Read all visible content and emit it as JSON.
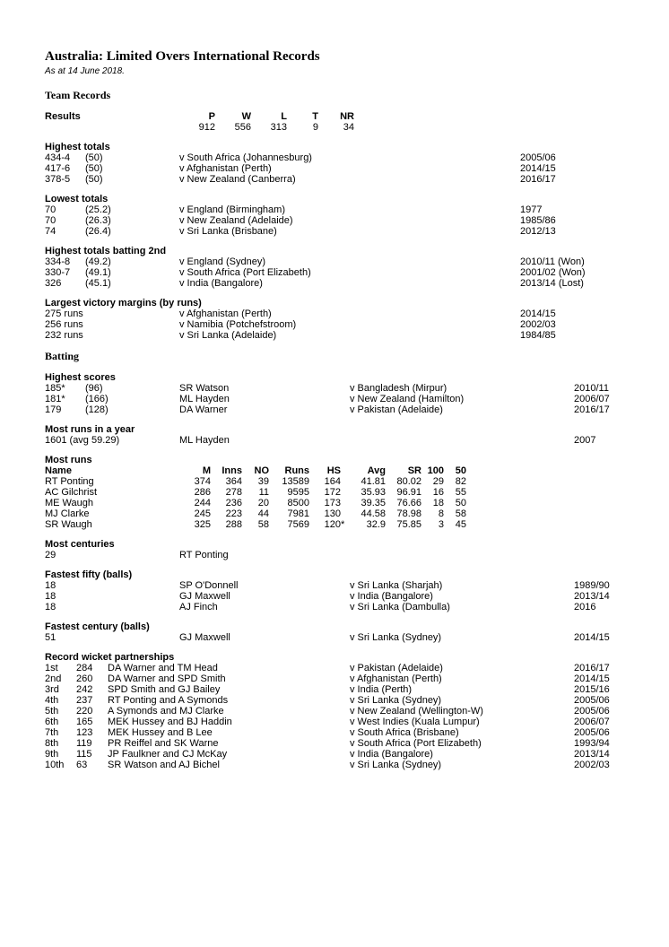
{
  "title": "Australia: Limited Overs International Records",
  "asat": "As at 14 June 2018.",
  "team_records_heading": "Team Records",
  "batting_heading": "Batting",
  "results": {
    "label": "Results",
    "headers": [
      "P",
      "W",
      "L",
      "T",
      "NR"
    ],
    "values": [
      "912",
      "556",
      "313",
      "9",
      "34"
    ]
  },
  "highest_totals": {
    "label": "Highest totals",
    "rows": [
      {
        "score": "434-4",
        "overs": "(50)",
        "opp": "v South Africa (Johannesburg)",
        "season": "2005/06"
      },
      {
        "score": "417-6",
        "overs": "(50)",
        "opp": "v Afghanistan (Perth)",
        "season": "2014/15"
      },
      {
        "score": "378-5",
        "overs": "(50)",
        "opp": "v New Zealand (Canberra)",
        "season": "2016/17"
      }
    ]
  },
  "lowest_totals": {
    "label": "Lowest totals",
    "rows": [
      {
        "score": "70",
        "overs": "(25.2)",
        "opp": "v England (Birmingham)",
        "season": "1977"
      },
      {
        "score": "70",
        "overs": "(26.3)",
        "opp": "v New Zealand (Adelaide)",
        "season": "1985/86"
      },
      {
        "score": "74",
        "overs": "(26.4)",
        "opp": "v Sri Lanka (Brisbane)",
        "season": "2012/13"
      }
    ]
  },
  "highest_2nd": {
    "label": "Highest totals batting 2nd",
    "rows": [
      {
        "score": "334-8",
        "overs": "(49.2)",
        "opp": "v England (Sydney)",
        "season": "2010/11 (Won)"
      },
      {
        "score": "330-7",
        "overs": "(49.1)",
        "opp": "v South Africa (Port Elizabeth)",
        "season": "2001/02 (Won)"
      },
      {
        "score": "326",
        "overs": "(45.1)",
        "opp": "v India (Bangalore)",
        "season": "2013/14 (Lost)"
      }
    ]
  },
  "largest_margins": {
    "label": "Largest victory margins (by runs)",
    "rows": [
      {
        "margin": "275 runs",
        "opp": "v Afghanistan (Perth)",
        "season": "2014/15"
      },
      {
        "margin": "256 runs",
        "opp": "v Namibia (Potchefstroom)",
        "season": "2002/03"
      },
      {
        "margin": "232 runs",
        "opp": "v Sri Lanka (Adelaide)",
        "season": "1984/85"
      }
    ]
  },
  "highest_scores": {
    "label": "Highest scores",
    "rows": [
      {
        "score": "185*",
        "balls": "(96)",
        "player": "SR Watson",
        "opp": "v Bangladesh (Mirpur)",
        "season": "2010/11"
      },
      {
        "score": "181*",
        "balls": "(166)",
        "player": "ML Hayden",
        "opp": "v New Zealand (Hamilton)",
        "season": "2006/07"
      },
      {
        "score": "179",
        "balls": "(128)",
        "player": "DA Warner",
        "opp": "v Pakistan (Adelaide)",
        "season": "2016/17"
      }
    ]
  },
  "most_runs_year": {
    "label": "Most runs in a year",
    "value": "1601 (avg 59.29)",
    "player": "ML Hayden",
    "season": "2007"
  },
  "most_runs": {
    "label": "Most runs",
    "headers": [
      "Name",
      "M",
      "Inns",
      "NO",
      "Runs",
      "HS",
      "",
      "Avg",
      "SR",
      "100",
      "50"
    ],
    "rows": [
      [
        "RT Ponting",
        "374",
        "364",
        "39",
        "13589",
        "164",
        "",
        "41.81",
        "80.02",
        "29",
        "82"
      ],
      [
        "AC Gilchrist",
        "286",
        "278",
        "11",
        "9595",
        "172",
        "",
        "35.93",
        "96.91",
        "16",
        "55"
      ],
      [
        "ME Waugh",
        "244",
        "236",
        "20",
        "8500",
        "173",
        "",
        "39.35",
        "76.66",
        "18",
        "50"
      ],
      [
        "MJ Clarke",
        "245",
        "223",
        "44",
        "7981",
        "130",
        "",
        "44.58",
        "78.98",
        "8",
        "58"
      ],
      [
        "SR Waugh",
        "325",
        "288",
        "58",
        "7569",
        "120",
        "*",
        "32.9",
        "75.85",
        "3",
        "45"
      ]
    ]
  },
  "most_centuries": {
    "label": "Most centuries",
    "value": "29",
    "player": "RT Ponting"
  },
  "fastest_fifty": {
    "label": "Fastest fifty (balls)",
    "rows": [
      {
        "balls": "18",
        "player": "SP O'Donnell",
        "opp": "v Sri Lanka (Sharjah)",
        "season": "1989/90"
      },
      {
        "balls": "18",
        "player": "GJ Maxwell",
        "opp": "v India (Bangalore)",
        "season": "2013/14"
      },
      {
        "balls": "18",
        "player": "AJ Finch",
        "opp": "v Sri Lanka (Dambulla)",
        "season": "2016"
      }
    ]
  },
  "fastest_century": {
    "label": "Fastest century (balls)",
    "rows": [
      {
        "balls": "51",
        "player": "GJ Maxwell",
        "opp": "v Sri Lanka (Sydney)",
        "season": "2014/15"
      }
    ]
  },
  "partnerships": {
    "label": "Record wicket partnerships",
    "rows": [
      {
        "wkt": "1st",
        "runs": "284",
        "players": "DA Warner and TM Head",
        "opp": "v Pakistan (Adelaide)",
        "season": "2016/17"
      },
      {
        "wkt": "2nd",
        "runs": "260",
        "players": "DA Warner and SPD Smith",
        "opp": "v Afghanistan (Perth)",
        "season": "2014/15"
      },
      {
        "wkt": "3rd",
        "runs": "242",
        "players": "SPD Smith and GJ Bailey",
        "opp": "v India (Perth)",
        "season": "2015/16"
      },
      {
        "wkt": "4th",
        "runs": "237",
        "players": "RT Ponting and A Symonds",
        "opp": "v Sri Lanka (Sydney)",
        "season": "2005/06"
      },
      {
        "wkt": "5th",
        "runs": "220",
        "players": "A Symonds and MJ Clarke",
        "opp": "v New Zealand (Wellington-W)",
        "season": "2005/06"
      },
      {
        "wkt": "6th",
        "runs": "165",
        "players": "MEK Hussey and BJ Haddin",
        "opp": "v West Indies (Kuala Lumpur)",
        "season": "2006/07"
      },
      {
        "wkt": "7th",
        "runs": "123",
        "players": "MEK Hussey and B Lee",
        "opp": "v South Africa (Brisbane)",
        "season": "2005/06"
      },
      {
        "wkt": "8th",
        "runs": "119",
        "players": "PR Reiffel and SK Warne",
        "opp": "v South Africa (Port Elizabeth)",
        "season": "1993/94"
      },
      {
        "wkt": "9th",
        "runs": "115",
        "players": "JP Faulkner and CJ McKay",
        "opp": "v India (Bangalore)",
        "season": "2013/14"
      },
      {
        "wkt": "10th",
        "runs": "63",
        "players": "SR Watson and AJ Bichel",
        "opp": "v Sri Lanka (Sydney)",
        "season": "2002/03"
      }
    ]
  }
}
